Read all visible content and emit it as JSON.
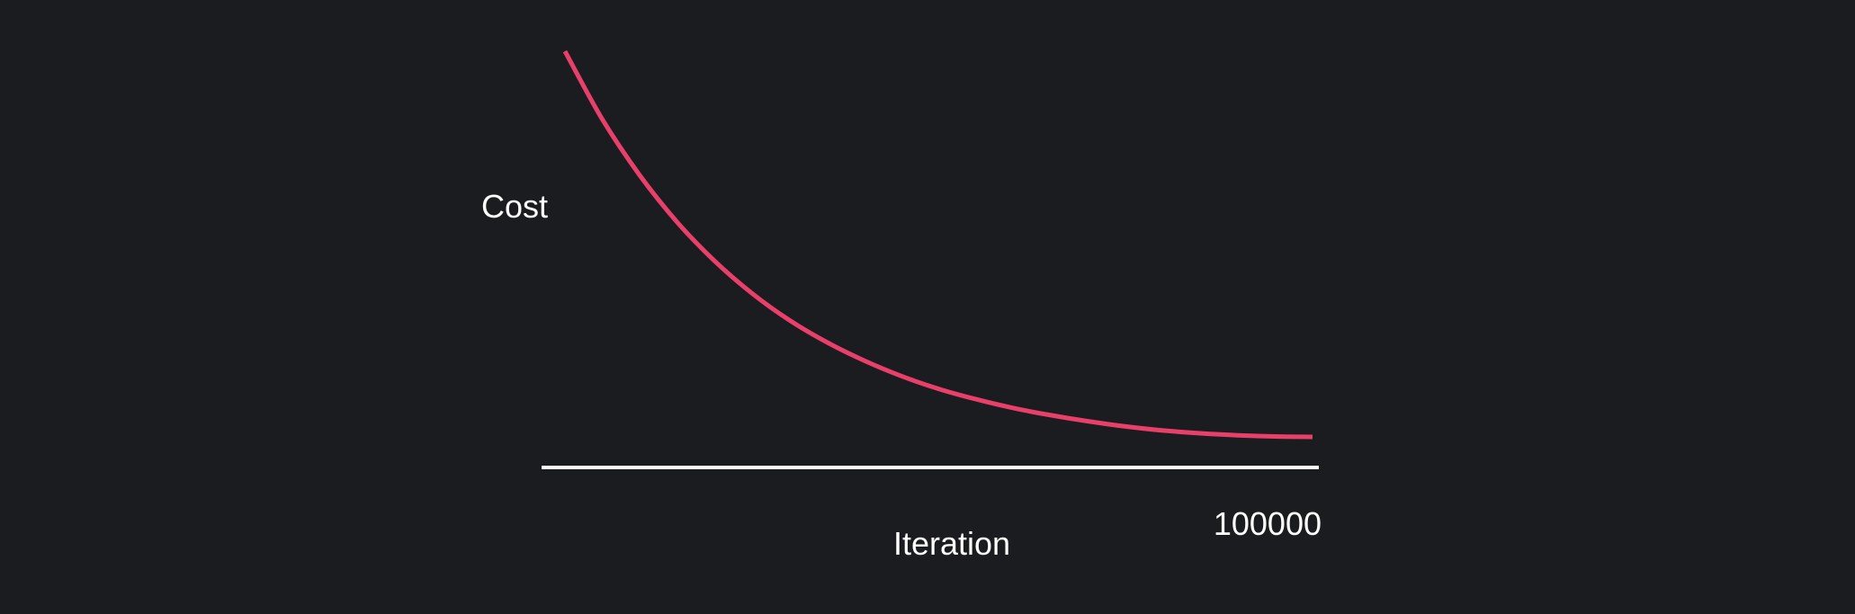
{
  "colors": {
    "background": "#1b1c20",
    "curve": "#e8406a",
    "axis": "#ffffff",
    "text": "#ffffff"
  },
  "chart_data": {
    "type": "line",
    "title": "",
    "xlabel": "Iteration",
    "ylabel": "Cost",
    "x_tick_labels": [
      "100000"
    ],
    "xlim": [
      0,
      100000
    ],
    "ylim": [
      0,
      1
    ],
    "grid": false,
    "legend": "none",
    "series": [
      {
        "x": [
          0,
          5000,
          10000,
          15000,
          20000,
          25000,
          30000,
          35000,
          40000,
          45000,
          50000,
          55000,
          60000,
          65000,
          70000,
          75000,
          80000,
          85000,
          90000,
          95000,
          100000
        ],
        "values": [
          1.0,
          0.83,
          0.69,
          0.573,
          0.476,
          0.395,
          0.328,
          0.273,
          0.227,
          0.188,
          0.156,
          0.13,
          0.108,
          0.09,
          0.075,
          0.062,
          0.052,
          0.045,
          0.04,
          0.037,
          0.036
        ]
      }
    ]
  }
}
